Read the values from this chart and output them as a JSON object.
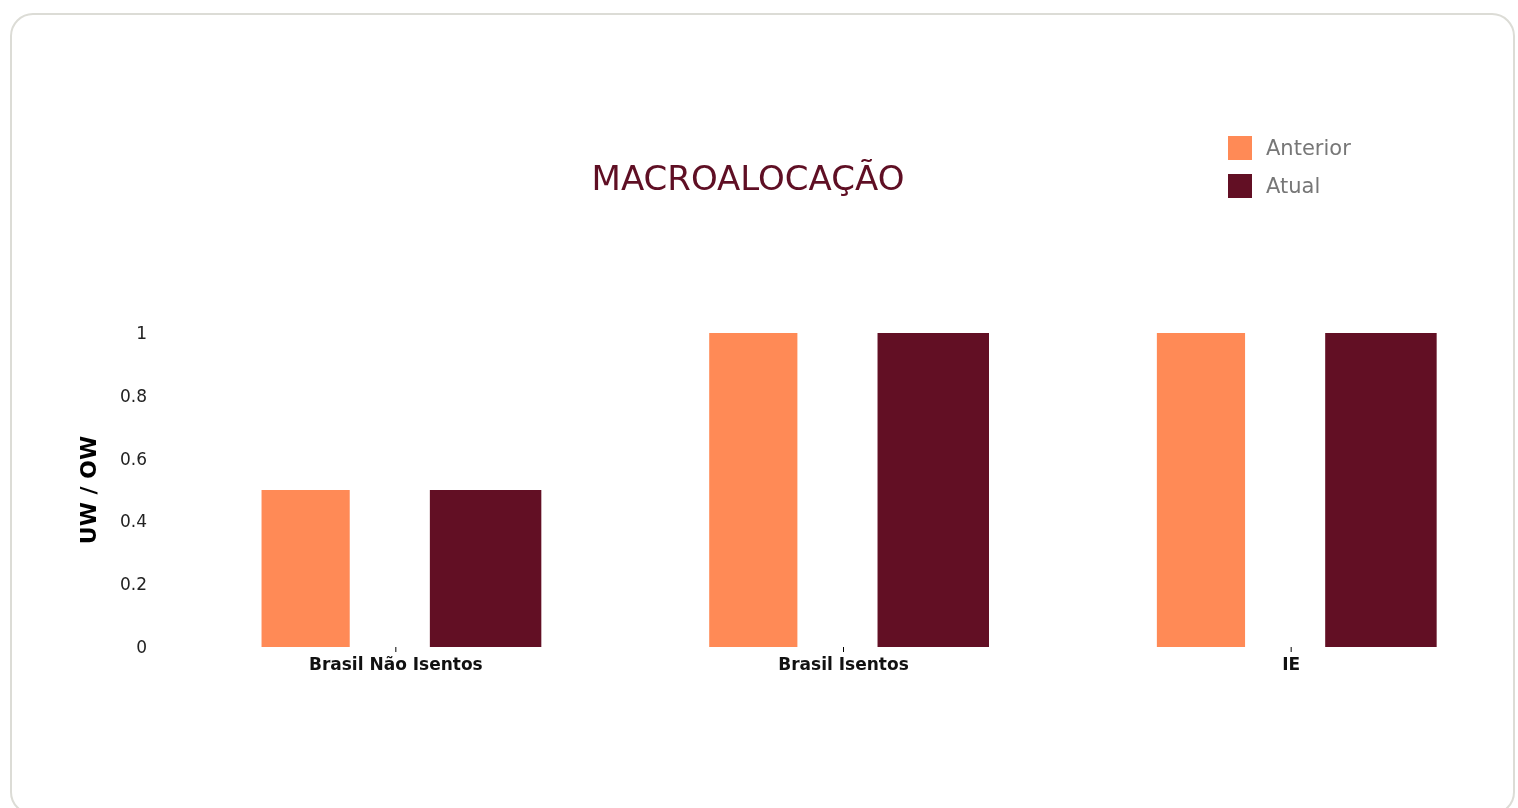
{
  "chart_data": {
    "type": "bar",
    "title": "MACROALOCAÇÃO",
    "ylabel": "UW / OW",
    "categories": [
      "Brasil Não Isentos",
      "Brasil Isentos",
      "IE"
    ],
    "series": [
      {
        "name": "Anterior",
        "color": "#ff8a56",
        "values": [
          0.5,
          1,
          1
        ]
      },
      {
        "name": "Atual",
        "color": "#620f24",
        "values": [
          0.5,
          1,
          1
        ]
      }
    ],
    "ylim": [
      0,
      1
    ],
    "yticks": [
      0,
      0.2,
      0.4,
      0.6,
      0.8,
      1
    ],
    "grid": false,
    "legend": "top right"
  }
}
